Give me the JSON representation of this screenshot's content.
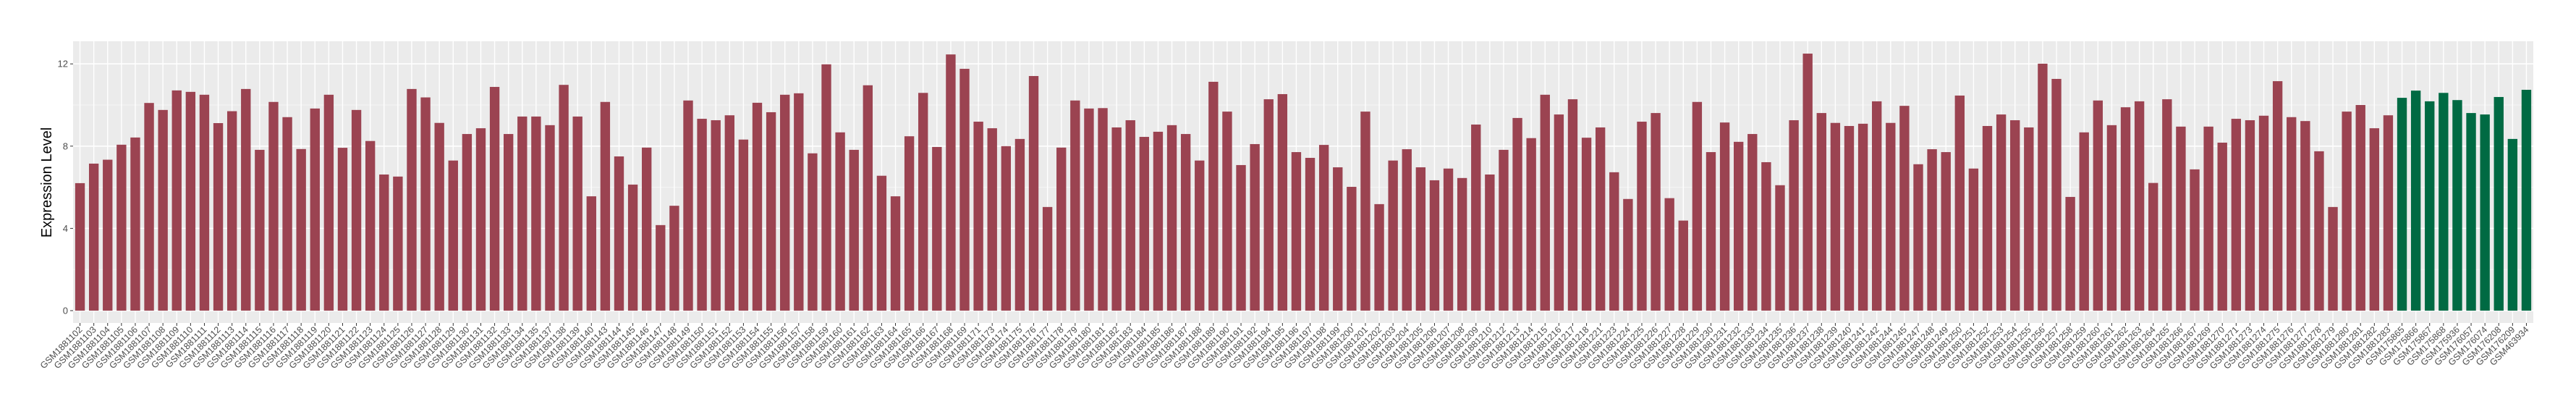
{
  "chart_data": {
    "type": "bar",
    "title": "",
    "xlabel": "",
    "ylabel": "Expression Level",
    "ylim": [
      -0.6,
      13.1
    ],
    "yticks": [
      0,
      4,
      8,
      12
    ],
    "grid": true,
    "legend": "none",
    "colors": {
      "group1": "#9B4351",
      "group2": "#006A43",
      "panel": "#EBEBEB"
    },
    "categories": [
      "GSM1881102",
      "GSM1881103",
      "GSM1881104",
      "GSM1881105",
      "GSM1881106",
      "GSM1881107",
      "GSM1881108",
      "GSM1881109",
      "GSM1881110",
      "GSM1881111",
      "GSM1881112",
      "GSM1881113",
      "GSM1881114",
      "GSM1881115",
      "GSM1881116",
      "GSM1881117",
      "GSM1881118",
      "GSM1881119",
      "GSM1881120",
      "GSM1881121",
      "GSM1881122",
      "GSM1881123",
      "GSM1881124",
      "GSM1881125",
      "GSM1881126",
      "GSM1881127",
      "GSM1881128",
      "GSM1881129",
      "GSM1881130",
      "GSM1881131",
      "GSM1881132",
      "GSM1881133",
      "GSM1881134",
      "GSM1881135",
      "GSM1881137",
      "GSM1881138",
      "GSM1881139",
      "GSM1881140",
      "GSM1881143",
      "GSM1881144",
      "GSM1881145",
      "GSM1881146",
      "GSM1881147",
      "GSM1881148",
      "GSM1881149",
      "GSM1881150",
      "GSM1881151",
      "GSM1881152",
      "GSM1881153",
      "GSM1881154",
      "GSM1881155",
      "GSM1881156",
      "GSM1881157",
      "GSM1881158",
      "GSM1881159",
      "GSM1881160",
      "GSM1881161",
      "GSM1881162",
      "GSM1881163",
      "GSM1881164",
      "GSM1881165",
      "GSM1881166",
      "GSM1881167",
      "GSM1881168",
      "GSM1881169",
      "GSM1881171",
      "GSM1881173",
      "GSM1881174",
      "GSM1881175",
      "GSM1881176",
      "GSM1881177",
      "GSM1881178",
      "GSM1881179",
      "GSM1881180",
      "GSM1881181",
      "GSM1881182",
      "GSM1881183",
      "GSM1881184",
      "GSM1881185",
      "GSM1881186",
      "GSM1881187",
      "GSM1881188",
      "GSM1881189",
      "GSM1881190",
      "GSM1881191",
      "GSM1881192",
      "GSM1881194",
      "GSM1881195",
      "GSM1881196",
      "GSM1881197",
      "GSM1881198",
      "GSM1881199",
      "GSM1881200",
      "GSM1881201",
      "GSM1881202",
      "GSM1881203",
      "GSM1881204",
      "GSM1881205",
      "GSM1881206",
      "GSM1881207",
      "GSM1881208",
      "GSM1881209",
      "GSM1881210",
      "GSM1881212",
      "GSM1881213",
      "GSM1881214",
      "GSM1881215",
      "GSM1881216",
      "GSM1881217",
      "GSM1881218",
      "GSM1881221",
      "GSM1881223",
      "GSM1881224",
      "GSM1881225",
      "GSM1881226",
      "GSM1881227",
      "GSM1881228",
      "GSM1881229",
      "GSM1881230",
      "GSM1881231",
      "GSM1881232",
      "GSM1881233",
      "GSM1881234",
      "GSM1881235",
      "GSM1881236",
      "GSM1881237",
      "GSM1881238",
      "GSM1881239",
      "GSM1881240",
      "GSM1881241",
      "GSM1881242",
      "GSM1881244",
      "GSM1881245",
      "GSM1881247",
      "GSM1881248",
      "GSM1881249",
      "GSM1881250",
      "GSM1881251",
      "GSM1881252",
      "GSM1881253",
      "GSM1881254",
      "GSM1881255",
      "GSM1881256",
      "GSM1881257",
      "GSM1881258",
      "GSM1881259",
      "GSM1881260",
      "GSM1881261",
      "GSM1881262",
      "GSM1881263",
      "GSM1881264",
      "GSM1881265",
      "GSM1881266",
      "GSM1881267",
      "GSM1881269",
      "GSM1881270",
      "GSM1881271",
      "GSM1881273",
      "GSM1881274",
      "GSM1881275",
      "GSM1881276",
      "GSM1881277",
      "GSM1881278",
      "GSM1881279",
      "GSM1881280",
      "GSM1881281",
      "GSM1881282",
      "GSM1881283",
      "GSM175865",
      "GSM175866",
      "GSM175867",
      "GSM175868",
      "GSM175936",
      "GSM176057",
      "GSM176074",
      "GSM176208",
      "GSM176209",
      "GSM463934"
    ],
    "values": [
      6.2,
      7.15,
      7.34,
      8.07,
      8.42,
      10.1,
      9.76,
      10.71,
      10.64,
      10.5,
      9.12,
      9.7,
      10.78,
      7.82,
      10.15,
      9.41,
      7.86,
      9.83,
      10.5,
      7.92,
      9.76,
      8.25,
      6.62,
      6.52,
      10.78,
      10.37,
      9.13,
      7.3,
      8.59,
      8.87,
      10.88,
      8.59,
      9.44,
      9.44,
      9.02,
      10.98,
      9.44,
      5.56,
      10.15,
      7.5,
      6.13,
      7.93,
      4.16,
      5.1,
      10.22,
      9.33,
      9.26,
      9.5,
      8.32,
      10.11,
      9.65,
      10.5,
      10.57,
      7.65,
      11.98,
      8.67,
      7.82,
      10.96,
      6.56,
      5.56,
      8.48,
      10.59,
      7.96,
      12.46,
      11.76,
      9.19,
      8.87,
      8.0,
      8.35,
      11.41,
      5.04,
      7.93,
      10.22,
      9.83,
      9.85,
      8.91,
      9.26,
      8.45,
      8.7,
      9.02,
      8.59,
      7.3,
      11.13,
      9.68,
      7.08,
      8.1,
      10.28,
      10.53,
      7.71,
      7.43,
      8.06,
      6.97,
      6.02,
      9.68,
      5.18,
      7.3,
      7.85,
      6.97,
      6.34,
      6.91,
      6.45,
      9.05,
      6.62,
      7.82,
      9.37,
      8.39,
      10.5,
      9.54,
      10.28,
      8.41,
      8.91,
      6.73,
      5.43,
      9.19,
      9.61,
      5.47,
      4.38,
      10.15,
      7.71,
      9.15,
      8.21,
      8.59,
      7.22,
      6.1,
      9.26,
      12.5,
      9.61,
      9.13,
      8.98,
      9.09,
      10.18,
      9.13,
      9.96,
      7.12,
      7.85,
      7.71,
      10.46,
      6.91,
      8.98,
      9.54,
      9.26,
      8.91,
      12.01,
      11.27,
      5.53,
      8.67,
      10.22,
      9.02,
      9.89,
      10.18,
      6.21,
      10.28,
      8.95,
      6.87,
      8.95,
      8.17,
      9.33,
      9.26,
      9.48,
      11.16,
      9.41,
      9.22,
      7.75,
      5.04,
      9.68,
      10.0,
      8.87,
      9.5,
      10.35,
      10.7,
      10.18,
      10.59,
      10.24,
      9.61,
      9.54,
      10.39,
      8.35,
      10.74
    ],
    "groups_count": {
      "group1": 168,
      "group2": 10
    }
  }
}
